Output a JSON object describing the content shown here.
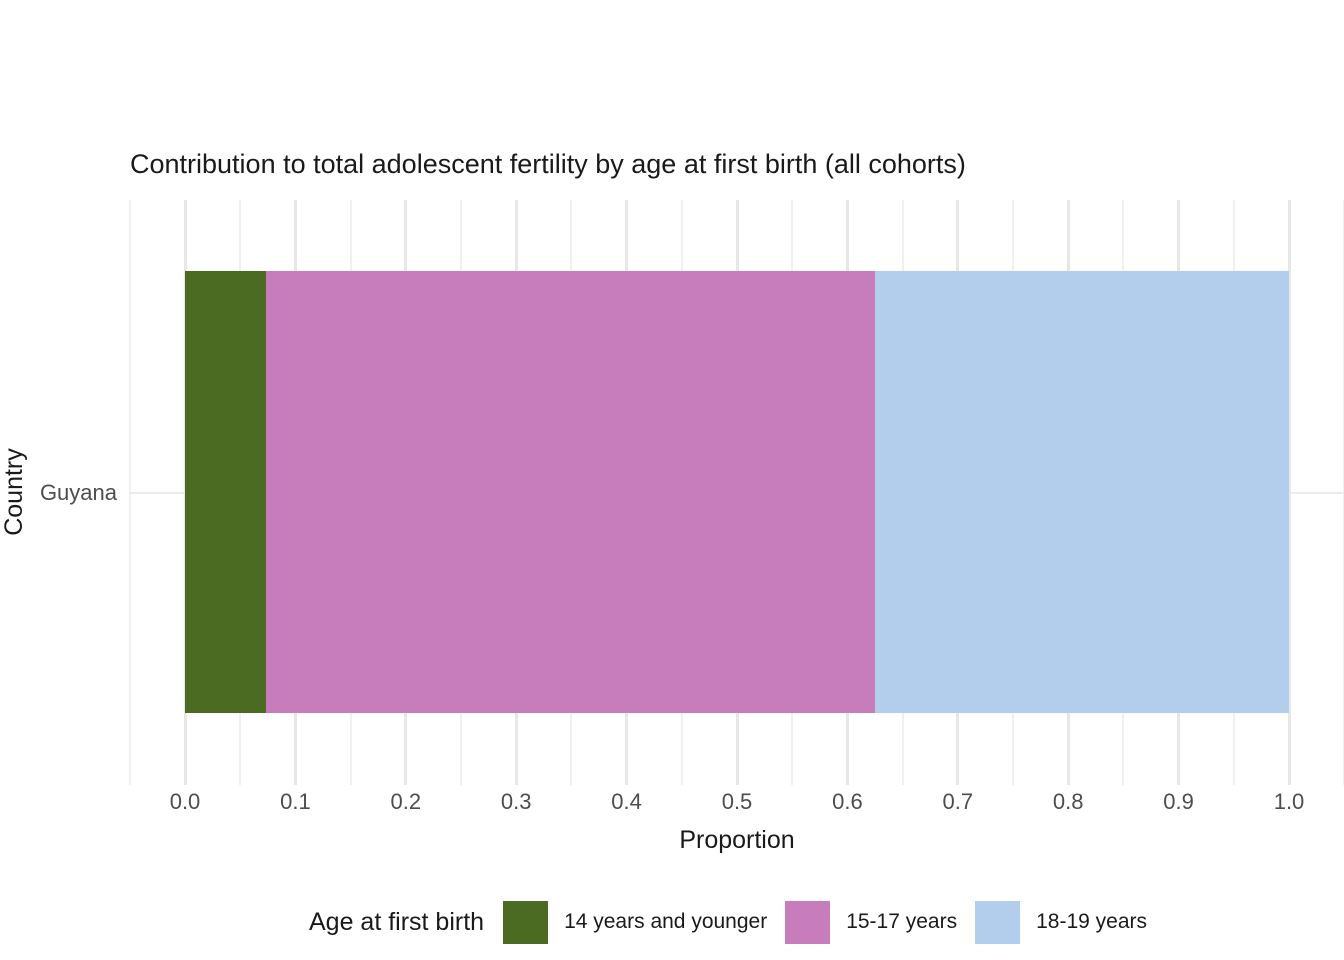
{
  "chart_data": {
    "type": "bar",
    "orientation": "horizontal",
    "stacked": true,
    "title": "Contribution to total adolescent fertility by age at first birth (all cohorts)",
    "xlabel": "Proportion",
    "ylabel": "Country",
    "categories": [
      "Guyana"
    ],
    "series": [
      {
        "name": "14 years and younger",
        "values": [
          0.073
        ],
        "color": "#4c6b22"
      },
      {
        "name": "15-17 years",
        "values": [
          0.552
        ],
        "color": "#c77cbb"
      },
      {
        "name": "18-19 years",
        "values": [
          0.375
        ],
        "color": "#b3cdec"
      }
    ],
    "xlim": [
      0.0,
      1.0
    ],
    "x_ticks": [
      {
        "value": 0.0,
        "label": "0.0"
      },
      {
        "value": 0.1,
        "label": "0.1"
      },
      {
        "value": 0.2,
        "label": "0.2"
      },
      {
        "value": 0.3,
        "label": "0.3"
      },
      {
        "value": 0.4,
        "label": "0.4"
      },
      {
        "value": 0.5,
        "label": "0.5"
      },
      {
        "value": 0.6,
        "label": "0.6"
      },
      {
        "value": 0.7,
        "label": "0.7"
      },
      {
        "value": 0.8,
        "label": "0.8"
      },
      {
        "value": 0.9,
        "label": "0.9"
      },
      {
        "value": 1.0,
        "label": "1.0"
      }
    ],
    "grid": true,
    "legend_title": "Age at first birth",
    "legend_position": "bottom"
  },
  "colors": {
    "gridline_major": "#e7e7e7",
    "gridline_minor": "#f0f0f0",
    "tick_label": "#4d4d4d",
    "text": "#1a1a1a",
    "background": "#ffffff"
  }
}
